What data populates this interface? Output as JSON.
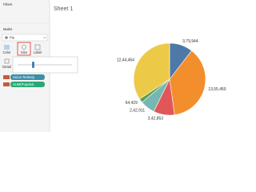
{
  "sidebar": {
    "filters": "Filters",
    "marks": "Marks",
    "mark_type": "Pie",
    "buttons": [
      "Color",
      "Size",
      "Label"
    ],
    "detail": "Detail",
    "pills": [
      "Union Territory",
      "SUM(Populati.."
    ]
  },
  "chart_data": {
    "type": "pie",
    "title": "Sheet 1",
    "values": [
      379944,
      1355450,
      342853,
      242911,
      64429,
      1244464
    ],
    "value_labels": [
      "3,79,944",
      "13,55,450",
      "3,42,853",
      "2,42,911",
      "64,429",
      "12,44,464"
    ],
    "colors": [
      "#4e79a7",
      "#f28e2b",
      "#e15759",
      "#76b7b2",
      "#59a14f",
      "#edc948"
    ]
  }
}
